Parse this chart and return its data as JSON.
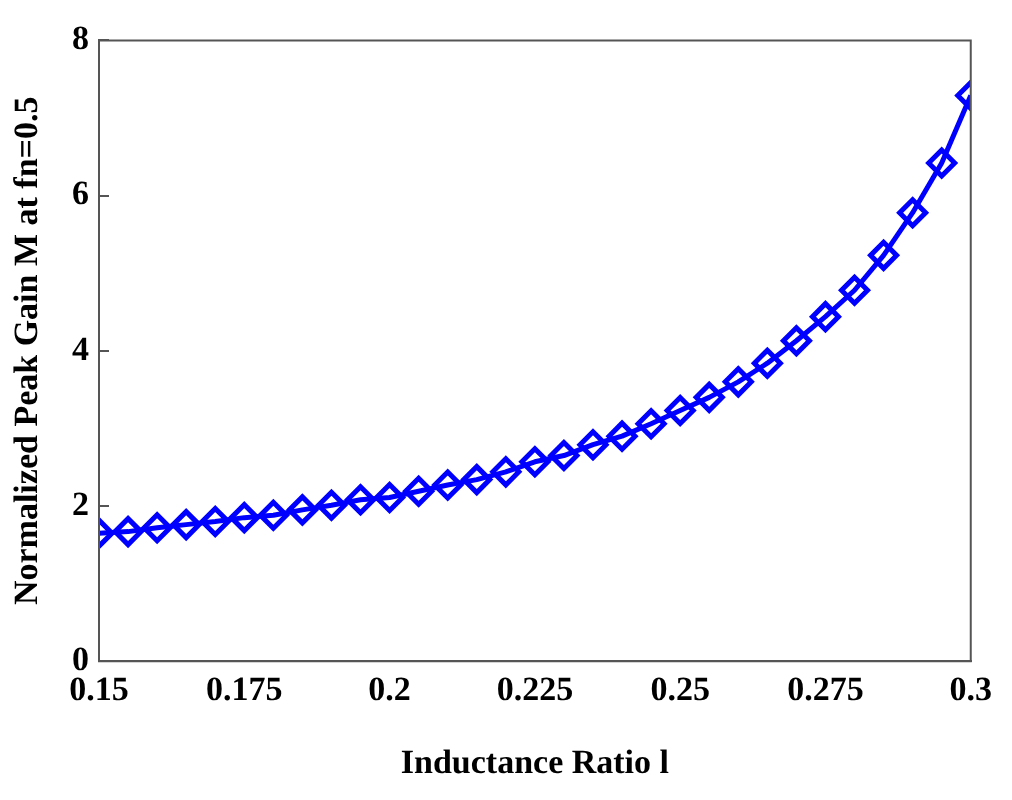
{
  "chart_data": {
    "type": "line",
    "xlabel": "Inductance Ratio l",
    "ylabel": "Normalized Peak Gain M at fn=0.5",
    "x": [
      0.15,
      0.155,
      0.16,
      0.165,
      0.17,
      0.175,
      0.18,
      0.185,
      0.19,
      0.195,
      0.2,
      0.205,
      0.21,
      0.215,
      0.22,
      0.225,
      0.23,
      0.235,
      0.24,
      0.245,
      0.25,
      0.255,
      0.26,
      0.265,
      0.27,
      0.275,
      0.28,
      0.285,
      0.29,
      0.295,
      0.3
    ],
    "series": [
      {
        "color": "#0000ff",
        "values": [
          1.65,
          1.67,
          1.72,
          1.76,
          1.8,
          1.85,
          1.88,
          1.95,
          2.01,
          2.08,
          2.11,
          2.19,
          2.27,
          2.34,
          2.44,
          2.57,
          2.65,
          2.79,
          2.9,
          3.06,
          3.23,
          3.4,
          3.6,
          3.84,
          4.13,
          4.44,
          4.78,
          5.23,
          5.78,
          6.42,
          7.29
        ]
      }
    ],
    "xlim": [
      0.15,
      0.3
    ],
    "xticks": [
      0.15,
      0.175,
      0.2,
      0.225,
      0.25,
      0.275,
      0.3
    ],
    "ylim": [
      0,
      8
    ],
    "yticks": [
      0,
      2,
      4,
      6,
      8
    ],
    "grid": false,
    "legend": false,
    "marker": "diamond",
    "line_style": "solid"
  }
}
